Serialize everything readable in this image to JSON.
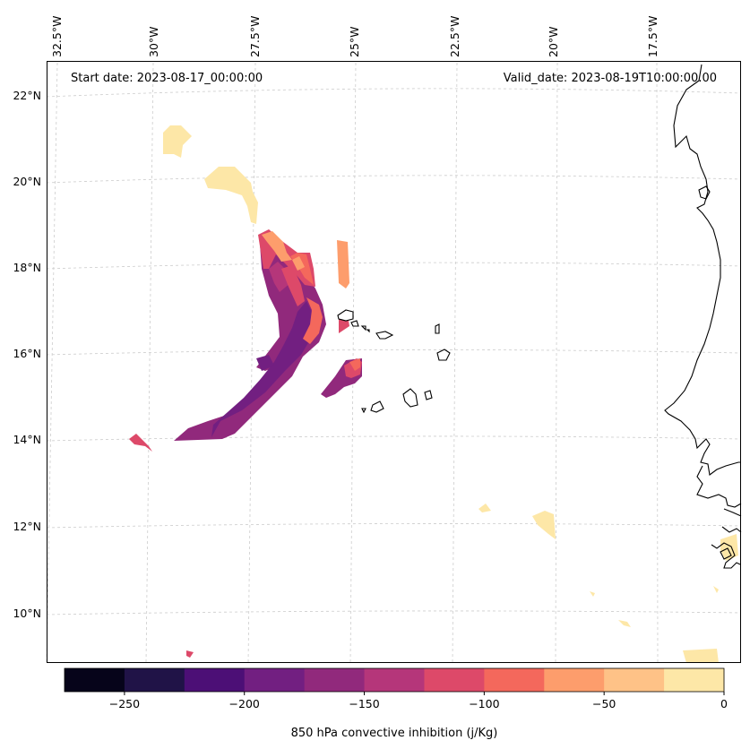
{
  "annotations": {
    "start_date": "Start date: 2023-08-17_00:00:00",
    "valid_date": "Valid_date: 2023-08-19T10:00:00.00"
  },
  "longitude_labels": [
    "32.5°W",
    "30°W",
    "27.5°W",
    "25°W",
    "22.5°W",
    "20°W",
    "17.5°W"
  ],
  "latitude_labels": [
    "22°N",
    "20°N",
    "18°N",
    "16°N",
    "14°N",
    "12°N",
    "10°N"
  ],
  "colorbar": {
    "label": "850 hPa convective inhibition (j/Kg)",
    "ticks": [
      "−250",
      "−200",
      "−150",
      "−100",
      "−50",
      "0"
    ],
    "colors": [
      "#06041a",
      "#201347",
      "#4c0f76",
      "#721f81",
      "#91297c",
      "#b5367a",
      "#dd4969",
      "#f4685c",
      "#fd9d6c",
      "#fec287",
      "#fde7a7"
    ]
  },
  "colors": {
    "land_outline": "#000000",
    "grid": "#cccccc"
  }
}
